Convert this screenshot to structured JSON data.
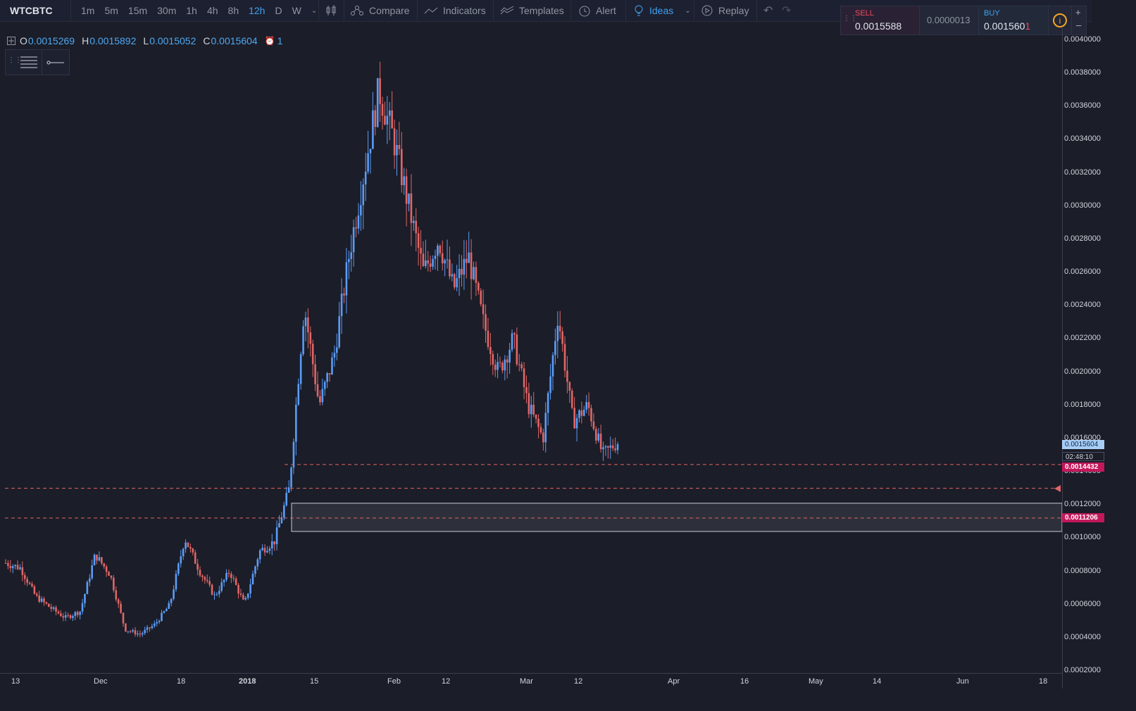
{
  "toolbar": {
    "symbol": "WTCBTC",
    "timeframes": [
      "1m",
      "5m",
      "15m",
      "30m",
      "1h",
      "4h",
      "8h",
      "12h",
      "D",
      "W"
    ],
    "active_timeframe": "12h",
    "compare": "Compare",
    "indicators": "Indicators",
    "templates": "Templates",
    "alert": "Alert",
    "ideas": "Ideas",
    "replay": "Replay"
  },
  "trade": {
    "sell_label": "SELL",
    "sell_price": "0.0015588",
    "spread": "0.0000013",
    "buy_label": "BUY",
    "buy_price": "0.0015601"
  },
  "ohlc": {
    "o_label": "O",
    "o": "0.0015269",
    "h_label": "H",
    "h": "0.0015892",
    "l_label": "L",
    "l": "0.0015052",
    "c_label": "C",
    "c": "0.0015604",
    "alerts": "1"
  },
  "price_badges": {
    "last": "0.0015604",
    "countdown": "02:48:10",
    "level1": "0.0014432",
    "level2": "0.0011206"
  },
  "colors": {
    "up": "#5b9cf6",
    "down": "#e06666",
    "accent": "#3fa0f0",
    "sell": "#f2495c"
  },
  "chart_data": {
    "type": "candlestick",
    "y_ticks": [
      "0.0040000",
      "0.0038000",
      "0.0036000",
      "0.0034000",
      "0.0032000",
      "0.0030000",
      "0.0028000",
      "0.0026000",
      "0.0024000",
      "0.0022000",
      "0.0020000",
      "0.0018000",
      "0.0016000",
      "0.0014000",
      "0.0012000",
      "0.0010000",
      "0.0008000",
      "0.0006000",
      "0.0004000",
      "0.0002000"
    ],
    "x_ticks": [
      "13",
      "Dec",
      "18",
      "2018",
      "15",
      "Feb",
      "12",
      "Mar",
      "12",
      "Apr",
      "16",
      "May",
      "14",
      "Jun",
      "18"
    ],
    "ylim": [
      0.0002,
      0.004
    ],
    "horizontal_levels": [
      0.0014432,
      0.0013,
      0.0011206
    ],
    "zone": [
      0.00104,
      0.00121
    ],
    "price_path": [
      0.00085,
      0.00082,
      0.00065,
      0.00058,
      0.00052,
      0.00056,
      0.0009,
      0.00078,
      0.00045,
      0.00042,
      0.00048,
      0.0006,
      0.001,
      0.0008,
      0.00065,
      0.0008,
      0.0006,
      0.00092,
      0.00098,
      0.0013,
      0.0024,
      0.0018,
      0.0021,
      0.0027,
      0.0032,
      0.0037,
      0.0034,
      0.003,
      0.0026,
      0.0028,
      0.0025,
      0.0027,
      0.0023,
      0.002,
      0.0022,
      0.0018,
      0.0016,
      0.00235,
      0.0017,
      0.0018,
      0.0015,
      0.00158
    ]
  }
}
